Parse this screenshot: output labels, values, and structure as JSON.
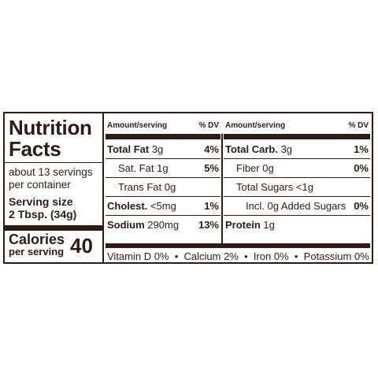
{
  "title_line1": "Nutrition",
  "title_line2": "Facts",
  "servings_line1": "about 13 servings",
  "servings_line2": "per container",
  "serving_size_label": "Serving size",
  "serving_size_value": "2 Tbsp. (34g)",
  "calories_label": "Calories",
  "calories_sub": "per serving",
  "calories_value": "40",
  "header_amount": "Amount/serving",
  "header_dv": "% DV",
  "left_rows": [
    {
      "name": "Total Fat",
      "amount": "3g",
      "dv": "4%"
    },
    {
      "name": "Sat. Fat",
      "amount": "1g",
      "dv": "5%"
    },
    {
      "name": "Trans Fat",
      "amount": "0g",
      "dv": ""
    },
    {
      "name": "Cholest.",
      "amount": "<5mg",
      "dv": "1%"
    },
    {
      "name": "Sodium",
      "amount": "290mg",
      "dv": "13%"
    }
  ],
  "right_rows": [
    {
      "name": "Total Carb.",
      "amount": "3g",
      "dv": "1%"
    },
    {
      "name": "Fiber",
      "amount": "0g",
      "dv": "0%"
    },
    {
      "name": "Total Sugars",
      "amount": "<1g",
      "dv": ""
    },
    {
      "name": "Incl.",
      "amount": "0g Added Sugars",
      "dv": "0%"
    },
    {
      "name": "Protein",
      "amount": "1g",
      "dv": ""
    }
  ],
  "vitamins": "Vitamin D 0%  •  Calcium 2%  •  Iron 0%  •  Potassium 0%"
}
